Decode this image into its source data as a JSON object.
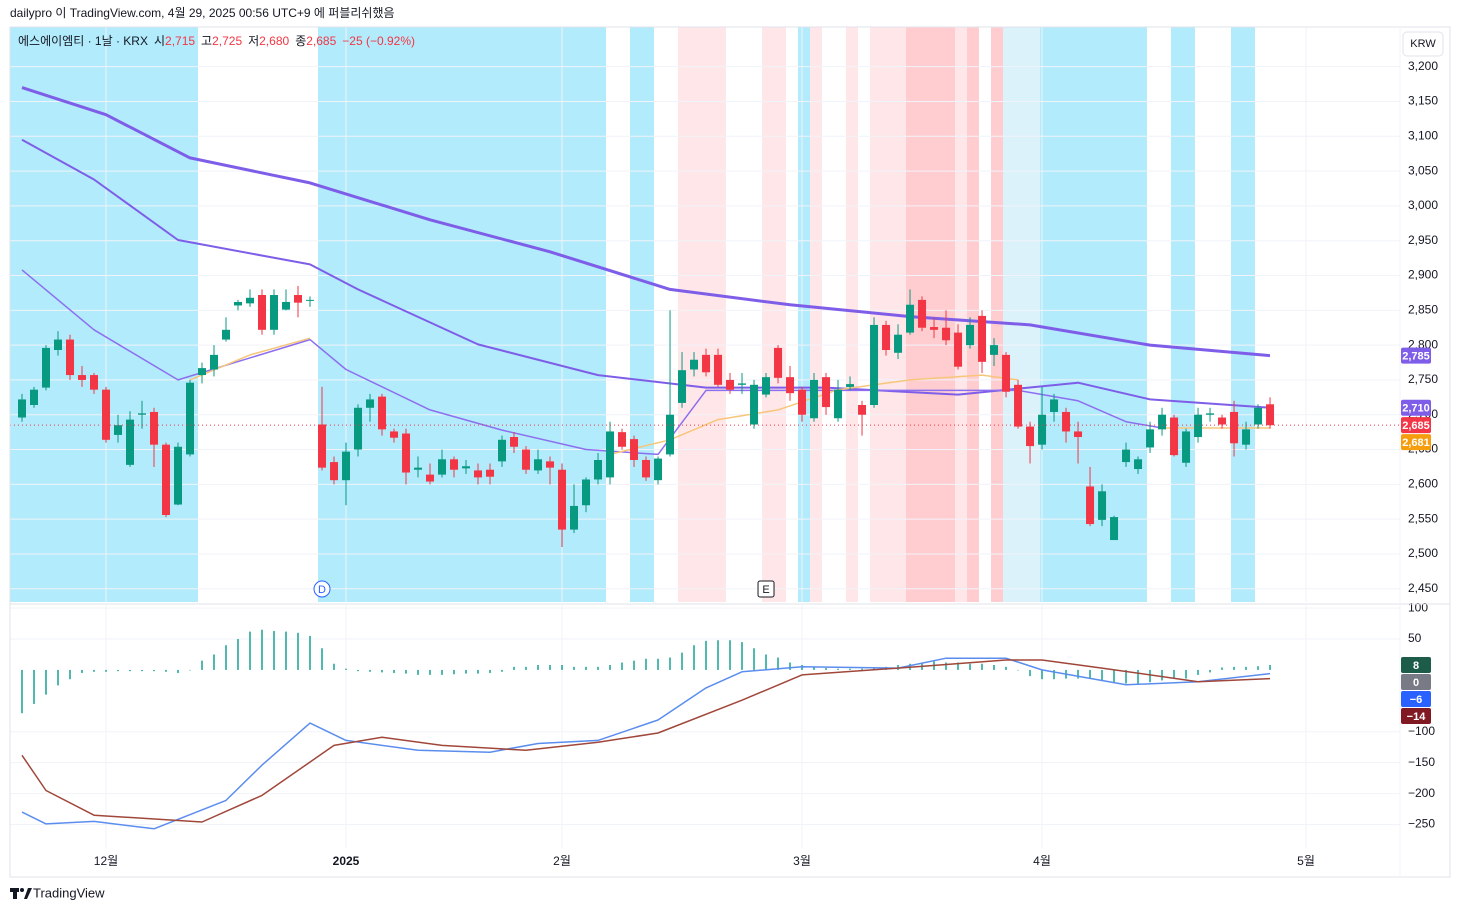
{
  "header": {
    "text": "dailypro 이 TradingView.com, 4월 29, 2025 00:56 UTC+9 에 퍼블리쉬했음"
  },
  "legend": {
    "symbol": "에스에이엠티 · 1날 · KRX",
    "open_label": "시",
    "open": "2,715",
    "high_label": "고",
    "high": "2,725",
    "low_label": "저",
    "low": "2,680",
    "close_label": "종",
    "close": "2,685",
    "change": "−25 (−0.92%)"
  },
  "currency": "KRW",
  "footer": {
    "brand": "TradingView"
  },
  "chart_data": [
    {
      "type": "candlestick",
      "open": [
        2696,
        2714,
        2739,
        2793,
        2808,
        2757,
        2757,
        2736,
        2671,
        2628,
        2700,
        2704,
        2657,
        2571,
        2643,
        2757,
        2765,
        2808,
        2857,
        2860,
        2872,
        2822,
        2851,
        2872,
        2865,
        2686,
        2632,
        2606,
        2650,
        2710,
        2726,
        2676,
        2673,
        2621,
        2614,
        2614,
        2636,
        2623,
        2620,
        2621,
        2633,
        2668,
        2650,
        2620,
        2633,
        2621,
        2535,
        2570,
        2607,
        2610,
        2675,
        2665,
        2635,
        2606,
        2643,
        2717,
        2765,
        2786,
        2786,
        2750,
        2743,
        2686,
        2729,
        2796,
        2754,
        2736,
        2695,
        2754,
        2695,
        2740,
        2714,
        2714,
        2829,
        2789,
        2818,
        2865,
        2826,
        2825,
        2818,
        2800,
        2842,
        2786,
        2786,
        2743,
        2683,
        2657,
        2704,
        2704,
        2676,
        2597,
        2549,
        2520,
        2632,
        2622,
        2653,
        2679,
        2696,
        2631,
        2668,
        2700,
        2696,
        2704,
        2657,
        2686,
        2715
      ],
      "high": [
        2730,
        2740,
        2800,
        2820,
        2815,
        2770,
        2760,
        2740,
        2700,
        2705,
        2720,
        2710,
        2660,
        2660,
        2750,
        2775,
        2800,
        2840,
        2865,
        2880,
        2880,
        2880,
        2880,
        2885,
        2870,
        2740,
        2640,
        2660,
        2715,
        2730,
        2730,
        2680,
        2680,
        2640,
        2630,
        2650,
        2640,
        2635,
        2630,
        2630,
        2670,
        2675,
        2655,
        2650,
        2640,
        2630,
        2600,
        2610,
        2645,
        2690,
        2680,
        2670,
        2640,
        2640,
        2850,
        2790,
        2790,
        2795,
        2795,
        2760,
        2760,
        2750,
        2760,
        2800,
        2770,
        2740,
        2760,
        2760,
        2750,
        2755,
        2720,
        2840,
        2835,
        2830,
        2880,
        2870,
        2840,
        2850,
        2830,
        2840,
        2850,
        2810,
        2790,
        2750,
        2690,
        2740,
        2730,
        2710,
        2690,
        2625,
        2600,
        2555,
        2660,
        2640,
        2690,
        2710,
        2700,
        2680,
        2710,
        2710,
        2700,
        2720,
        2690,
        2715,
        2725
      ],
      "low": [
        2690,
        2710,
        2735,
        2785,
        2750,
        2740,
        2730,
        2660,
        2660,
        2625,
        2680,
        2625,
        2553,
        2570,
        2640,
        2745,
        2755,
        2805,
        2850,
        2855,
        2815,
        2815,
        2850,
        2840,
        2855,
        2620,
        2600,
        2570,
        2640,
        2690,
        2670,
        2660,
        2600,
        2610,
        2600,
        2610,
        2610,
        2615,
        2600,
        2600,
        2625,
        2645,
        2615,
        2615,
        2600,
        2510,
        2530,
        2560,
        2600,
        2600,
        2650,
        2625,
        2605,
        2600,
        2640,
        2710,
        2755,
        2755,
        2740,
        2730,
        2730,
        2680,
        2725,
        2745,
        2720,
        2690,
        2690,
        2700,
        2690,
        2735,
        2670,
        2710,
        2785,
        2780,
        2815,
        2820,
        2810,
        2800,
        2765,
        2795,
        2760,
        2770,
        2725,
        2680,
        2630,
        2650,
        2690,
        2660,
        2630,
        2540,
        2540,
        2520,
        2625,
        2615,
        2645,
        2670,
        2640,
        2625,
        2660,
        2690,
        2680,
        2640,
        2650,
        2680,
        2680
      ],
      "close": [
        2722,
        2736,
        2796,
        2808,
        2757,
        2750,
        2736,
        2664,
        2685,
        2693,
        2702,
        2657,
        2556,
        2654,
        2746,
        2767,
        2786,
        2822,
        2862,
        2868,
        2822,
        2872,
        2862,
        2861,
        2865,
        2624,
        2606,
        2647,
        2710,
        2722,
        2679,
        2667,
        2617,
        2624,
        2604,
        2636,
        2621,
        2626,
        2610,
        2611,
        2664,
        2654,
        2621,
        2636,
        2624,
        2535,
        2569,
        2607,
        2635,
        2676,
        2654,
        2635,
        2610,
        2637,
        2700,
        2764,
        2779,
        2761,
        2743,
        2736,
        2745,
        2743,
        2754,
        2753,
        2731,
        2700,
        2750,
        2711,
        2736,
        2744,
        2700,
        2829,
        2793,
        2815,
        2858,
        2825,
        2822,
        2807,
        2769,
        2829,
        2776,
        2800,
        2733,
        2683,
        2655,
        2700,
        2722,
        2676,
        2668,
        2543,
        2590,
        2553,
        2650,
        2636,
        2679,
        2700,
        2642,
        2676,
        2700,
        2702,
        2686,
        2659,
        2679,
        2710,
        2685
      ],
      "up_color": "#089981",
      "down_color": "#f23645",
      "series": [
        {
          "color": "#7e5ee8",
          "width": 3,
          "x": [
            0,
            7,
            14,
            24,
            34,
            44,
            54,
            64,
            74,
            84,
            94,
            104
          ],
          "values": [
            3170,
            3131,
            3069,
            3033,
            2980,
            2934,
            2880,
            2858,
            2841,
            2829,
            2800,
            2785
          ]
        },
        {
          "color": "#7e5ee8",
          "width": 2,
          "x": [
            0,
            6,
            13,
            24,
            28,
            38,
            48,
            57,
            67,
            78,
            88,
            94,
            104
          ],
          "values": [
            3095,
            3038,
            2951,
            2916,
            2880,
            2801,
            2757,
            2739,
            2739,
            2729,
            2746,
            2722,
            2710
          ]
        },
        {
          "color": "#8c6ff0",
          "width": 1.5,
          "x": [
            0,
            6,
            13,
            24,
            27,
            34,
            40,
            47,
            53,
            57,
            83,
            88,
            92,
            95
          ],
          "values": [
            2908,
            2822,
            2750,
            2808,
            2765,
            2707,
            2678,
            2650,
            2643,
            2735,
            2735,
            2720,
            2690,
            2681
          ]
        },
        {
          "color": "#f7c67a",
          "width": 1.5,
          "x": [
            14,
            19,
            24,
            36,
            49,
            54,
            58,
            63,
            68,
            74,
            80,
            83,
            89,
            95,
            104
          ],
          "values": [
            2750,
            2786,
            2810,
            null,
            2643,
            2664,
            2693,
            2707,
            2736,
            2750,
            2757,
            2750,
            null,
            2681,
            2681
          ]
        }
      ],
      "price_labels": [
        {
          "value": 2785,
          "label": "2,785",
          "color": "#7e5ee8"
        },
        {
          "value": 2710,
          "label": "2,710",
          "color": "#7e5ee8"
        },
        {
          "value": 2685,
          "label": "2,685",
          "color": "#f23645"
        },
        {
          "value": 2681,
          "label": "2,681",
          "color": "#f59d0d"
        }
      ],
      "last_price_line": true,
      "markers": [
        {
          "label": "D",
          "x": 25,
          "shape": "circle",
          "color": "#2962ff"
        },
        {
          "label": "E",
          "x": 62,
          "shape": "square",
          "color": "#131722"
        }
      ],
      "xlim": [
        -1,
        114.83
      ],
      "xticks": [
        {
          "value": 7,
          "label": "12월"
        },
        {
          "value": 27,
          "label": "2025"
        },
        {
          "value": 45,
          "label": "2월"
        },
        {
          "value": 65,
          "label": "3월"
        },
        {
          "value": 85,
          "label": "4월"
        },
        {
          "value": 107,
          "label": "5월"
        }
      ],
      "ylim": [
        2431,
        3257
      ],
      "yticks": [
        {
          "value": 2450,
          "label": "2,450"
        },
        {
          "value": 2500,
          "label": "2,500"
        },
        {
          "value": 2550,
          "label": "2,550"
        },
        {
          "value": 2600,
          "label": "2,600"
        },
        {
          "value": 2650,
          "label": "2,650"
        },
        {
          "value": 2700,
          "label": "2,700"
        },
        {
          "value": 2750,
          "label": "2,750"
        },
        {
          "value": 2800,
          "label": "2,800"
        },
        {
          "value": 2850,
          "label": "2,850"
        },
        {
          "value": 2900,
          "label": "2,900"
        },
        {
          "value": 2950,
          "label": "2,950"
        },
        {
          "value": 3000,
          "label": "3,000"
        },
        {
          "value": 3050,
          "label": "3,050"
        },
        {
          "value": 3100,
          "label": "3,100"
        },
        {
          "value": 3150,
          "label": "3,150"
        },
        {
          "value": 3200,
          "label": "3,200"
        }
      ],
      "grid": true
    },
    {
      "type": "macd",
      "histogram": {
        "color": "#26a69a",
        "values": [
          -70,
          -55,
          -40,
          -25,
          -15,
          -5,
          -3,
          -3,
          -2,
          -2,
          -2,
          -2,
          -3,
          -5,
          0,
          15,
          25,
          40,
          50,
          62,
          65,
          63,
          62,
          60,
          55,
          35,
          10,
          2,
          -2,
          -3,
          -4,
          -5,
          -6,
          -8,
          -8,
          -8,
          -7,
          -6,
          -6,
          -5,
          -3,
          5,
          5,
          8,
          8,
          8,
          5,
          5,
          5,
          8,
          12,
          15,
          18,
          18,
          20,
          28,
          40,
          47,
          48,
          48,
          45,
          35,
          25,
          20,
          12,
          8,
          5,
          3,
          2,
          2,
          2,
          3,
          5,
          8,
          10,
          12,
          14,
          12,
          12,
          10,
          10,
          8,
          5,
          0,
          -10,
          -15,
          -15,
          -14,
          -14,
          -14,
          -18,
          -20,
          -22,
          -22,
          -20,
          -17,
          -14,
          -14,
          -8,
          -4,
          4,
          5,
          5,
          6,
          8
        ]
      },
      "series": [
        {
          "color": "#5b8def",
          "width": 1.5,
          "x": [
            0,
            2,
            6,
            11,
            17,
            20,
            24,
            27,
            33,
            39,
            43,
            48,
            53,
            57,
            60,
            65,
            73,
            77,
            82,
            85,
            92,
            98,
            104
          ],
          "values": [
            -230,
            -249,
            -245,
            -257,
            -211,
            -154,
            -86,
            -114,
            -130,
            -133,
            -119,
            -114,
            -81,
            -29,
            -3,
            5,
            3,
            19,
            19,
            0,
            -24,
            -19,
            -6
          ]
        },
        {
          "color": "#a0473a",
          "width": 1.5,
          "x": [
            0,
            2,
            6,
            15,
            20,
            26,
            30,
            35,
            42,
            48,
            53,
            60,
            65,
            73,
            82,
            85,
            90,
            98,
            104
          ],
          "values": [
            -138,
            -195,
            -235,
            -246,
            -203,
            -122,
            -109,
            -122,
            -130,
            -117,
            -102,
            -49,
            -8,
            3,
            16,
            16,
            3,
            -19,
            -14
          ]
        }
      ],
      "value_labels": [
        {
          "value": 8,
          "color": "#1e5c4a"
        },
        {
          "value": 0,
          "color": "#787b86"
        },
        {
          "value": -6,
          "label": "−6",
          "color": "#2962ff"
        },
        {
          "value": -14,
          "label": "−14",
          "color": "#801922"
        }
      ],
      "ylim": [
        -288,
        105
      ],
      "yticks": [
        100,
        50,
        {
          "value": -100,
          "label": "−100"
        },
        {
          "value": -150,
          "label": "−150"
        },
        {
          "value": -200,
          "label": "−200"
        },
        {
          "value": -250,
          "label": "−250"
        }
      ],
      "grid": true
    }
  ]
}
